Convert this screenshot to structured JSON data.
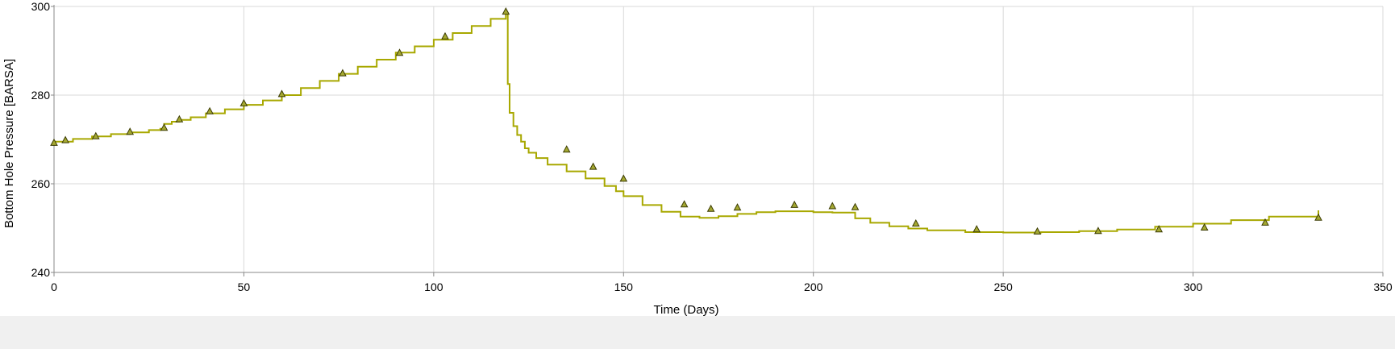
{
  "chart_data": {
    "type": "line",
    "title": "",
    "xlabel": "Time (Days)",
    "ylabel": "Bottom Hole Pressure [BARSA]",
    "xlim": [
      0,
      350
    ],
    "ylim": [
      240,
      300
    ],
    "xticks": [
      0,
      50,
      100,
      150,
      200,
      250,
      300,
      350
    ],
    "yticks": [
      240,
      260,
      280,
      300
    ],
    "grid": true,
    "legend": "none",
    "colors": {
      "line": "#a8a800",
      "marker_fill": "#a4a832",
      "marker_stroke": "#3a3a00",
      "grid": "#d9d9d9",
      "axis": "#888888"
    },
    "series": [
      {
        "type": "line",
        "style": "step",
        "x": [
          0,
          5,
          10,
          15,
          20,
          25,
          28,
          29,
          31,
          33,
          36,
          40,
          45,
          50,
          55,
          60,
          65,
          70,
          75,
          80,
          85,
          90,
          95,
          100,
          105,
          110,
          115,
          119,
          119.5,
          120,
          121,
          122,
          123,
          124,
          125,
          127,
          130,
          135,
          140,
          145,
          148,
          150,
          155,
          160,
          165,
          170,
          175,
          180,
          185,
          190,
          195,
          200,
          205,
          210,
          211,
          215,
          220,
          225,
          230,
          240,
          250,
          255,
          260,
          270,
          280,
          290,
          300,
          310,
          320,
          333
        ],
        "y": [
          269.5,
          270.1,
          270.7,
          271.2,
          271.6,
          272.1,
          272.4,
          273.5,
          274.0,
          274.4,
          275.0,
          275.9,
          276.8,
          277.8,
          278.8,
          280.0,
          281.6,
          283.2,
          284.8,
          286.4,
          288.0,
          289.6,
          291.0,
          292.5,
          294.0,
          295.6,
          297.2,
          298.5,
          282.5,
          276.0,
          273.0,
          271.0,
          269.5,
          268.0,
          267.0,
          265.8,
          264.3,
          262.8,
          261.2,
          259.5,
          258.3,
          257.2,
          255.2,
          253.7,
          252.6,
          252.3,
          252.7,
          253.2,
          253.6,
          253.8,
          253.8,
          253.6,
          253.5,
          253.5,
          252.2,
          251.2,
          250.4,
          249.9,
          249.5,
          249.1,
          249.0,
          249.0,
          249.1,
          249.3,
          249.7,
          250.3,
          251.0,
          251.8,
          252.6,
          254.0
        ]
      },
      {
        "type": "scatter",
        "marker": "triangle",
        "x": [
          0,
          3,
          11,
          20,
          29,
          33,
          41,
          50,
          60,
          76,
          91,
          103,
          119,
          135,
          142,
          150,
          166,
          173,
          180,
          195,
          205,
          211,
          227,
          243,
          259,
          275,
          291,
          303,
          319,
          333
        ],
        "y": [
          269.2,
          269.8,
          270.7,
          271.7,
          272.6,
          274.5,
          276.3,
          278.1,
          280.2,
          284.9,
          289.5,
          293.2,
          298.8,
          267.7,
          263.8,
          261.1,
          255.3,
          254.3,
          254.6,
          255.2,
          254.9,
          254.7,
          251.0,
          249.7,
          249.2,
          249.3,
          249.7,
          250.1,
          251.2,
          252.3
        ]
      }
    ]
  }
}
